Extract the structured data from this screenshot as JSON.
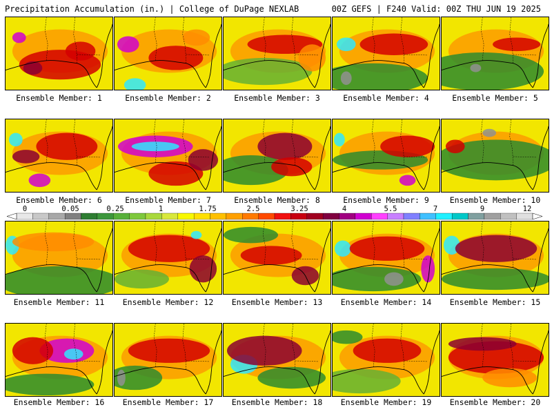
{
  "header": {
    "left": "Precipitation Accumulation (in.) | College of DuPage NEXLAB",
    "right": "00Z GEFS | F240 Valid: 00Z THU JUN 19 2025"
  },
  "colors": {
    "land_low": "#2e8b2e",
    "land_mid": "#66b032",
    "yellow": "#f2e600",
    "orange": "#ff8c00",
    "red": "#d40000",
    "darkred": "#8b0030",
    "magenta": "#d000d0",
    "cyan": "#30e6ff",
    "gray": "#909090"
  },
  "panels": [
    {
      "label": "Ensemble Member: 1"
    },
    {
      "label": "Ensemble Member: 2"
    },
    {
      "label": "Ensemble Member: 3"
    },
    {
      "label": "Ensemble Member: 4"
    },
    {
      "label": "Ensemble Member: 5"
    },
    {
      "label": "Ensemble Member: 6"
    },
    {
      "label": "Ensemble Member: 7"
    },
    {
      "label": "Ensemble Member: 8"
    },
    {
      "label": "Ensemble Member: 9"
    },
    {
      "label": "Ensemble Member: 10"
    },
    {
      "label": "Ensemble Member: 11"
    },
    {
      "label": "Ensemble Member: 12"
    },
    {
      "label": "Ensemble Member: 13"
    },
    {
      "label": "Ensemble Member: 14"
    },
    {
      "label": "Ensemble Member: 15"
    },
    {
      "label": "Ensemble Member: 16"
    },
    {
      "label": "Ensemble Member: 17"
    },
    {
      "label": "Ensemble Member: 18"
    },
    {
      "label": "Ensemble Member: 19"
    },
    {
      "label": "Ensemble Member: 20"
    }
  ],
  "colorbar": {
    "tick_labels": [
      "0",
      "0.05",
      "0.25",
      "1",
      "1.75",
      "2.5",
      "3.25",
      "4",
      "5.5",
      "7",
      "9",
      "12"
    ],
    "bins": [
      "#e8e8e8",
      "#c8c8c8",
      "#a8a8a8",
      "#808080",
      "#2e7d32",
      "#3c963c",
      "#57b03a",
      "#7ec83c",
      "#a8d83c",
      "#d8e83c",
      "#f8f800",
      "#ffe000",
      "#ffc000",
      "#ffa000",
      "#ff7a00",
      "#ff4a00",
      "#f01010",
      "#c80010",
      "#a00020",
      "#800040",
      "#a00080",
      "#d000d0",
      "#ff40ff",
      "#c880ff",
      "#8080ff",
      "#40c0ff",
      "#20f0ff",
      "#00c8c8",
      "#80a0a0",
      "#a0a0a0",
      "#c0c0c0",
      "#e0e0e0"
    ]
  }
}
